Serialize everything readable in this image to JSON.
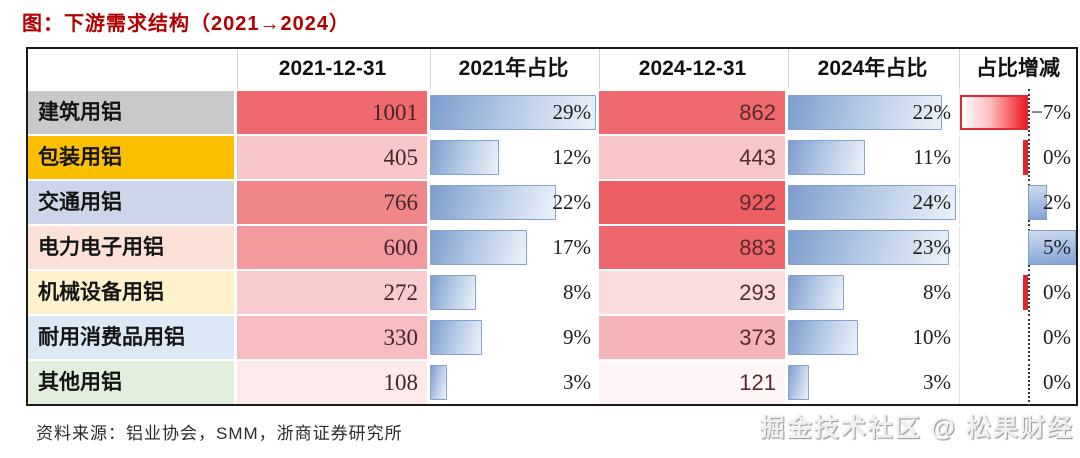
{
  "title": "图：下游需求结构（2021→2024）",
  "source": "资料来源：铝业协会，SMM，浙商证券研究所",
  "watermark": "掘金技术社区 @ 松果财经",
  "colors": {
    "title_red": "#b00000",
    "table_border": "#1a1a1a",
    "bar_blue_border": "#84a3d1",
    "bar_blue_gradient": [
      "#7e9dcd",
      "#edf2fa"
    ],
    "negative_red": "#ee1c25",
    "positive_blue": "#83a3d5"
  },
  "chart_data": {
    "type": "table",
    "title": "下游需求结构（2021→2024）",
    "columns": [
      "",
      "2021-12-31",
      "2021年占比",
      "2024-12-31",
      "2024年占比",
      "占比增减"
    ],
    "pct_2021_max": 29,
    "pct_2024_max": 24,
    "delta_min": -7,
    "delta_max": 5,
    "rows": [
      {
        "label": "建筑用铝",
        "label_bg": "#c9c9c9",
        "value_2021": 1001,
        "heat_2021": "#ee6a6f",
        "pct_2021": 29,
        "pct_2021_label": "29%",
        "value_2024": 862,
        "heat_2024": "#ee6a6f",
        "pct_2024": 22,
        "pct_2024_label": "22%",
        "delta": -7,
        "delta_label": "−7%",
        "delta_sliver": false
      },
      {
        "label": "包装用铝",
        "label_bg": "#fcbf00",
        "value_2021": 405,
        "heat_2021": "#f8c6c9",
        "pct_2021": 12,
        "pct_2021_label": "12%",
        "value_2024": 443,
        "heat_2024": "#f8c6c9",
        "pct_2024": 11,
        "pct_2024_label": "11%",
        "delta": -0.5,
        "delta_label": "0%",
        "delta_sliver": true
      },
      {
        "label": "交通用铝",
        "label_bg": "#cdd5ea",
        "value_2021": 766,
        "heat_2021": "#f1868a",
        "pct_2021": 22,
        "pct_2021_label": "22%",
        "value_2024": 922,
        "heat_2024": "#ed5e63",
        "pct_2024": 24,
        "pct_2024_label": "24%",
        "delta": 2,
        "delta_label": "2%",
        "delta_sliver": false
      },
      {
        "label": "电力电子用铝",
        "label_bg": "#fbe1d6",
        "value_2021": 600,
        "heat_2021": "#f29a9e",
        "pct_2021": 17,
        "pct_2021_label": "17%",
        "value_2024": 883,
        "heat_2024": "#ee676c",
        "pct_2024": 23,
        "pct_2024_label": "23%",
        "delta": 5,
        "delta_label": "5%",
        "delta_sliver": false
      },
      {
        "label": "机械设备用铝",
        "label_bg": "#fdf2cb",
        "value_2021": 272,
        "heat_2021": "#f8cbce",
        "pct_2021": 8,
        "pct_2021_label": "8%",
        "value_2024": 293,
        "heat_2024": "#fadcde",
        "pct_2024": 8,
        "pct_2024_label": "8%",
        "delta": -0.5,
        "delta_label": "0%",
        "delta_sliver": true
      },
      {
        "label": "耐用消费品用铝",
        "label_bg": "#dbe9f7",
        "value_2021": 330,
        "heat_2021": "#f6bcc0",
        "pct_2021": 9,
        "pct_2021_label": "9%",
        "value_2024": 373,
        "heat_2024": "#f5b4b8",
        "pct_2024": 10,
        "pct_2024_label": "10%",
        "delta": 0,
        "delta_label": "0%",
        "delta_sliver": false
      },
      {
        "label": "其他用铝",
        "label_bg": "#e2efdc",
        "value_2021": 108,
        "heat_2021": "#fdeaeb",
        "pct_2021": 3,
        "pct_2021_label": "3%",
        "value_2024": 121,
        "heat_2024": "#fef6f6",
        "pct_2024": 3,
        "pct_2024_label": "3%",
        "delta": 0,
        "delta_label": "0%",
        "delta_sliver": false
      }
    ]
  }
}
